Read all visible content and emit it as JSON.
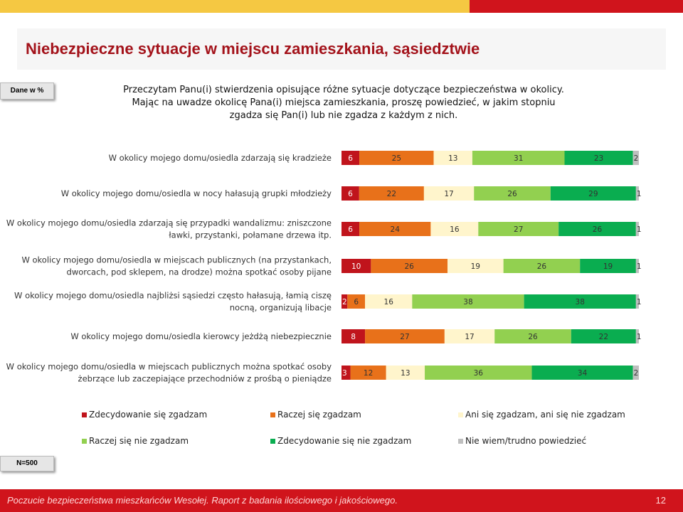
{
  "header": {
    "title": "Niebezpieczne sytuacje w miejscu zamieszkania, sąsiedztwie",
    "data_tag": "Dane w %",
    "question": "Przeczytam Panu(i) stwierdzenia opisujące różne sytuacje dotyczące bezpieczeństwa w okolicy. Mając na uwadze okolicę Pana(i) miejsca zamieszkania, proszę powiedzieć, w jakim stopniu zgadza się Pan(i) lub nie zgadza z każdym z nich."
  },
  "sample_tag": "N=500",
  "footer": {
    "text": "Poczucie bezpieczeństwa mieszkańców Wesołej. Raport z badania ilościowego i jakościowego.",
    "page_number": "12"
  },
  "colors": {
    "s1": "#c0141c",
    "s2": "#e8711a",
    "s3": "#fff5cc",
    "s4": "#92d050",
    "s5": "#0aad50",
    "s6": "#bfbfbf"
  },
  "chart_data": {
    "type": "bar",
    "orientation": "horizontal-stacked-100",
    "categories": [
      [
        "W okolicy mojego domu/osiedla zdarzają się kradzieże"
      ],
      [
        "W okolicy mojego domu/osiedla w nocy hałasują grupki młodzieży"
      ],
      [
        "W okolicy mojego domu/osiedla zdarzają się przypadki wandalizmu: zniszczone",
        "ławki, przystanki, połamane drzewa itp."
      ],
      [
        "W okolicy mojego domu/osiedla w miejscach publicznych (na przystankach,",
        "dworcach, pod sklepem, na drodze) można spotkać osoby pijane"
      ],
      [
        "W okolicy mojego domu/osiedla najbliżsi sąsiedzi często hałasują, łamią ciszę",
        "nocną, organizują libacje"
      ],
      [
        "W okolicy mojego domu/osiedla kierowcy jeżdżą niebezpiecznie"
      ],
      [
        "W okolicy mojego domu/osiedla w miejscach publicznych można spotkać osoby",
        "żebrzące lub zaczepiające przechodniów z prośbą o pieniądze"
      ]
    ],
    "series": [
      {
        "name": "Zdecydowanie się zgadzam",
        "values": [
          6,
          6,
          6,
          10,
          2,
          8,
          3
        ]
      },
      {
        "name": "Raczej się zgadzam",
        "values": [
          25,
          22,
          24,
          26,
          6,
          27,
          12
        ]
      },
      {
        "name": "Ani się zgadzam, ani się nie zgadzam",
        "values": [
          13,
          17,
          16,
          19,
          16,
          17,
          13
        ]
      },
      {
        "name": "Raczej się nie zgadzam",
        "values": [
          31,
          26,
          27,
          26,
          38,
          26,
          36
        ]
      },
      {
        "name": "Zdecydowanie się nie zgadzam",
        "values": [
          23,
          29,
          26,
          19,
          38,
          22,
          34
        ]
      },
      {
        "name": "Nie wiem/trudno powiedzieć",
        "values": [
          2,
          1,
          1,
          1,
          1,
          1,
          2
        ]
      }
    ],
    "xlim": [
      0,
      100
    ],
    "legend_position": "bottom"
  }
}
